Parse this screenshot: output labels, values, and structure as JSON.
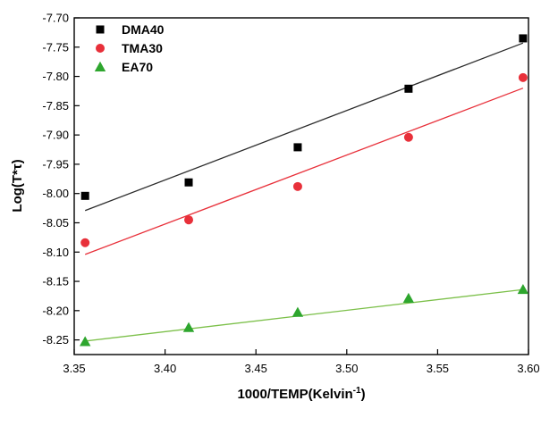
{
  "chart_data": {
    "type": "scatter",
    "title": "",
    "xlabel": "1000/TEMP(Kelvin",
    "xlabel_sup": "-1",
    "xlabel_end": ")",
    "ylabel": "Log(T*τ)",
    "xlim": [
      3.35,
      3.6
    ],
    "ylim": [
      -8.275,
      -7.7
    ],
    "x_ticks": [
      "3.35",
      "3.40",
      "3.45",
      "3.50",
      "3.55",
      "3.60"
    ],
    "y_ticks": [
      "-7.70",
      "-7.75",
      "-7.80",
      "-7.85",
      "-7.90",
      "-7.95",
      "-8.00",
      "-8.05",
      "-8.10",
      "-8.15",
      "-8.20",
      "-8.25"
    ],
    "grid": false,
    "legend_position": "top-left",
    "series": [
      {
        "name": "DMA40",
        "marker": "square",
        "color": "#000000",
        "line_color": "#2b2b2b",
        "x": [
          3.356,
          3.413,
          3.473,
          3.534,
          3.597
        ],
        "y": [
          -8.004,
          -7.981,
          -7.921,
          -7.821,
          -7.735
        ],
        "fit": [
          [
            3.356,
            -8.029
          ],
          [
            3.597,
            -7.743
          ]
        ]
      },
      {
        "name": "TMA30",
        "marker": "circle",
        "color": "#e8303a",
        "line_color": "#e8303a",
        "x": [
          3.356,
          3.413,
          3.473,
          3.534,
          3.597
        ],
        "y": [
          -8.084,
          -8.045,
          -7.988,
          -7.904,
          -7.802
        ],
        "fit": [
          [
            3.356,
            -8.104
          ],
          [
            3.597,
            -7.82
          ]
        ]
      },
      {
        "name": "EA70",
        "marker": "triangle",
        "color": "#2ea62e",
        "line_color": "#7cc04a",
        "x": [
          3.356,
          3.413,
          3.473,
          3.534,
          3.597
        ],
        "y": [
          -8.253,
          -8.229,
          -8.203,
          -8.179,
          -8.164
        ],
        "fit": [
          [
            3.356,
            -8.252
          ],
          [
            3.597,
            -8.164
          ]
        ]
      }
    ]
  }
}
